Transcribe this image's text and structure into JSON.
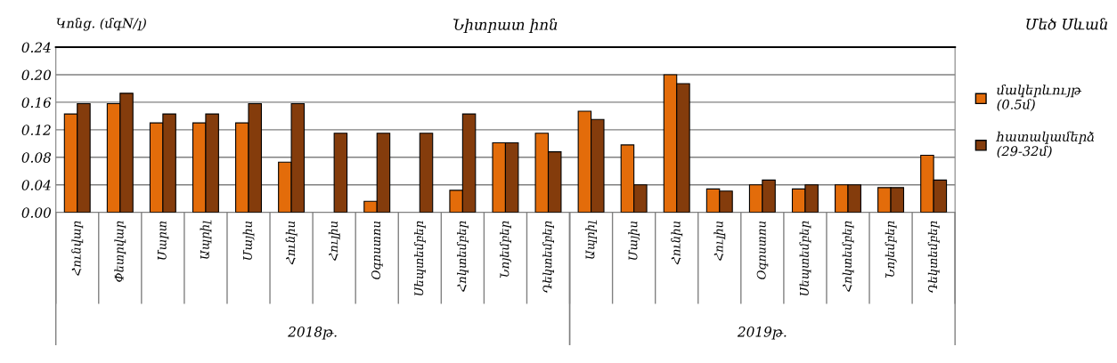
{
  "chart_data": {
    "type": "bar",
    "title": "Նիտրատ իոն",
    "ylabel": "Կոնց. (մգN/լ)",
    "legend_title": "Մեծ Սևան",
    "categories": [
      "Հունվար",
      "Փետրվար",
      "Մարտ",
      "Ապրիլ",
      "Մայիս",
      "Հունիս",
      "Հուլիս",
      "Օգոստոս",
      "Սեպտեմբեր",
      "Հոկտեմբեր",
      "Նոյեմբեր",
      "Դեկտեմբեր",
      "Ապրիլ",
      "Մայիս",
      "Հունիս",
      "Հուլիս",
      "Օգոստոս",
      "Սեպտեմբեր",
      "Հոկտեմբեր",
      "Նոյեմբեր",
      "Դեկտեմբեր"
    ],
    "series": [
      {
        "name": "մակերևույթ (0.5մ)",
        "color": "#e36c0a",
        "values": [
          0.143,
          0.158,
          0.13,
          0.13,
          0.13,
          0.073,
          null,
          0.016,
          null,
          0.032,
          0.101,
          0.115,
          0.147,
          0.098,
          0.2,
          0.034,
          0.04,
          0.034,
          0.04,
          0.036,
          0.083
        ]
      },
      {
        "name": "հատակամերձ (29-32մ)",
        "color": "#843c0c",
        "values": [
          0.158,
          0.173,
          0.143,
          0.143,
          0.158,
          0.158,
          0.115,
          0.115,
          0.115,
          0.143,
          0.101,
          0.088,
          0.135,
          0.04,
          0.187,
          0.031,
          0.047,
          0.04,
          0.04,
          0.036,
          0.047
        ]
      }
    ],
    "annotations": [
      "2018թ.",
      "2019թ."
    ],
    "ylim": [
      0,
      0.24
    ],
    "yticks": [
      "0.00",
      0.04,
      0.08,
      0.12,
      0.16,
      "0.20",
      0.24
    ],
    "grid": "y",
    "legend": "right"
  }
}
